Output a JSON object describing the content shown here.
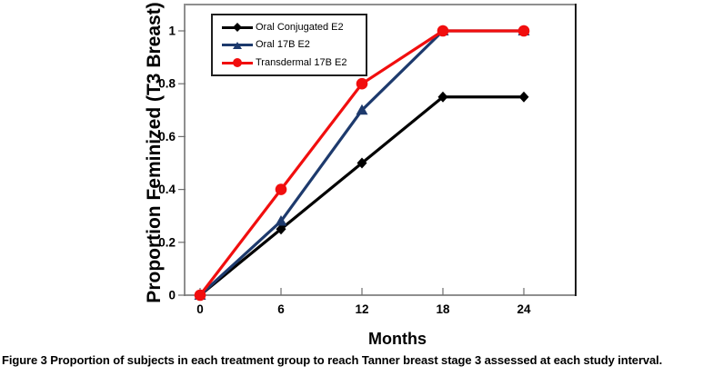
{
  "chart_data": {
    "type": "line",
    "title": "",
    "xlabel": "Months",
    "ylabel": "Proportion Feminized (T3 Breast)",
    "x": [
      0,
      6,
      12,
      18,
      24
    ],
    "x_ticks": [
      0,
      6,
      12,
      18,
      24
    ],
    "x_tick_labels": [
      "0",
      "6",
      "12",
      "18",
      "24"
    ],
    "y_ticks": [
      0,
      0.2,
      0.4,
      0.6,
      0.8,
      1
    ],
    "y_tick_labels": [
      "0",
      "0.2",
      "0.4",
      "0.6",
      "0.8",
      "1"
    ],
    "xlim": [
      0,
      27.8
    ],
    "ylim": [
      0,
      1.1
    ],
    "grid": false,
    "legend_position": "top-left-inside",
    "series": [
      {
        "name": "Oral Conjugated E2",
        "color": "#000000",
        "marker": "diamond",
        "values": [
          0,
          0.25,
          0.5,
          0.75,
          0.75
        ]
      },
      {
        "name": "Oral 17B E2",
        "color": "#1d3a6d",
        "marker": "triangle",
        "values": [
          0,
          0.28,
          0.7,
          1,
          1
        ]
      },
      {
        "name": "Transdermal 17B E2",
        "color": "#f10e0e",
        "marker": "circle",
        "values": [
          0,
          0.4,
          0.8,
          1,
          1
        ]
      }
    ]
  },
  "colors": {
    "frame": "#8f8f8f",
    "frame_right": "#1c1c1c",
    "tick": "#6e6e6e",
    "text": "#000000",
    "background": "#ffffff"
  },
  "caption": {
    "label": "Figure 3",
    "text": "Proportion of subjects in each treatment group to reach Tanner breast stage 3 assessed at each study interval."
  }
}
